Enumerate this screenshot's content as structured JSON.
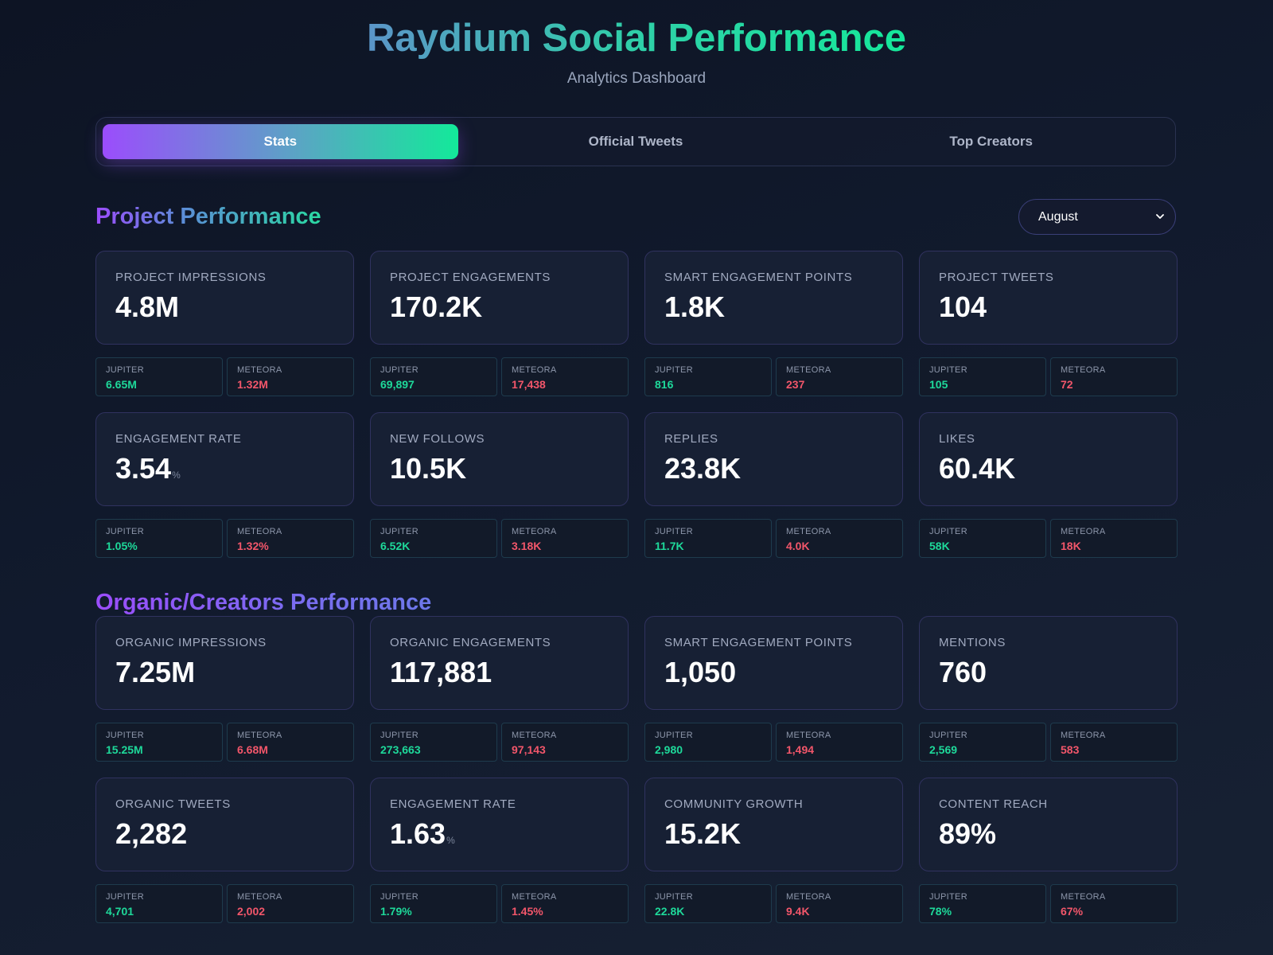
{
  "header": {
    "title": "Raydium Social Performance",
    "subtitle": "Analytics Dashboard"
  },
  "tabs": [
    {
      "label": "Stats",
      "active": true
    },
    {
      "label": "Official Tweets",
      "active": false
    },
    {
      "label": "Top Creators",
      "active": false
    }
  ],
  "month_select": {
    "value": "August"
  },
  "sections": {
    "project": {
      "title": "Project Performance",
      "cards": [
        {
          "label": "PROJECT IMPRESSIONS",
          "value": "4.8M",
          "unit": "",
          "jupiter_label": "JUPITER",
          "jupiter": "6.65M",
          "meteora_label": "METEORA",
          "meteora": "1.32M"
        },
        {
          "label": "PROJECT ENGAGEMENTS",
          "value": "170.2K",
          "unit": "",
          "jupiter_label": "JUPITER",
          "jupiter": "69,897",
          "meteora_label": "METEORA",
          "meteora": "17,438"
        },
        {
          "label": "SMART ENGAGEMENT POINTS",
          "value": "1.8K",
          "unit": "",
          "jupiter_label": "JUPITER",
          "jupiter": "816",
          "meteora_label": "METEORA",
          "meteora": "237"
        },
        {
          "label": "PROJECT TWEETS",
          "value": "104",
          "unit": "",
          "jupiter_label": "JUPITER",
          "jupiter": "105",
          "meteora_label": "METEORA",
          "meteora": "72"
        },
        {
          "label": "ENGAGEMENT RATE",
          "value": "3.54",
          "unit": "%",
          "jupiter_label": "JUPITER",
          "jupiter": "1.05%",
          "meteora_label": "METEORA",
          "meteora": "1.32%"
        },
        {
          "label": "NEW FOLLOWS",
          "value": "10.5K",
          "unit": "",
          "jupiter_label": "JUPITER",
          "jupiter": "6.52K",
          "meteora_label": "METEORA",
          "meteora": "3.18K"
        },
        {
          "label": "REPLIES",
          "value": "23.8K",
          "unit": "",
          "jupiter_label": "JUPITER",
          "jupiter": "11.7K",
          "meteora_label": "METEORA",
          "meteora": "4.0K"
        },
        {
          "label": "LIKES",
          "value": "60.4K",
          "unit": "",
          "jupiter_label": "JUPITER",
          "jupiter": "58K",
          "meteora_label": "METEORA",
          "meteora": "18K"
        }
      ]
    },
    "organic": {
      "title": "Organic/Creators Performance",
      "cards": [
        {
          "label": "ORGANIC IMPRESSIONS",
          "value": "7.25M",
          "unit": "",
          "jupiter_label": "JUPITER",
          "jupiter": "15.25M",
          "meteora_label": "METEORA",
          "meteora": "6.68M"
        },
        {
          "label": "ORGANIC ENGAGEMENTS",
          "value": "117,881",
          "unit": "",
          "jupiter_label": "JUPITER",
          "jupiter": "273,663",
          "meteora_label": "METEORA",
          "meteora": "97,143"
        },
        {
          "label": "SMART ENGAGEMENT POINTS",
          "value": "1,050",
          "unit": "",
          "jupiter_label": "JUPITER",
          "jupiter": "2,980",
          "meteora_label": "METEORA",
          "meteora": "1,494"
        },
        {
          "label": "MENTIONS",
          "value": "760",
          "unit": "",
          "jupiter_label": "JUPITER",
          "jupiter": "2,569",
          "meteora_label": "METEORA",
          "meteora": "583"
        },
        {
          "label": "ORGANIC TWEETS",
          "value": "2,282",
          "unit": "",
          "jupiter_label": "JUPITER",
          "jupiter": "4,701",
          "meteora_label": "METEORA",
          "meteora": "2,002"
        },
        {
          "label": "ENGAGEMENT RATE",
          "value": "1.63",
          "unit": "%",
          "jupiter_label": "JUPITER",
          "jupiter": "1.79%",
          "meteora_label": "METEORA",
          "meteora": "1.45%"
        },
        {
          "label": "COMMUNITY GROWTH",
          "value": "15.2K",
          "unit": "",
          "jupiter_label": "JUPITER",
          "jupiter": "22.8K",
          "meteora_label": "METEORA",
          "meteora": "9.4K"
        },
        {
          "label": "CONTENT REACH",
          "value": "89%",
          "unit": "",
          "jupiter_label": "JUPITER",
          "jupiter": "78%",
          "meteora_label": "METEORA",
          "meteora": "67%"
        }
      ]
    }
  },
  "colors": {
    "positive": "#1ed99a",
    "negative": "#f2566a",
    "accent_purple": "#9b4dfc",
    "accent_green": "#13e99a"
  },
  "icons": {
    "select_chevron": "chevron-down-icon"
  }
}
